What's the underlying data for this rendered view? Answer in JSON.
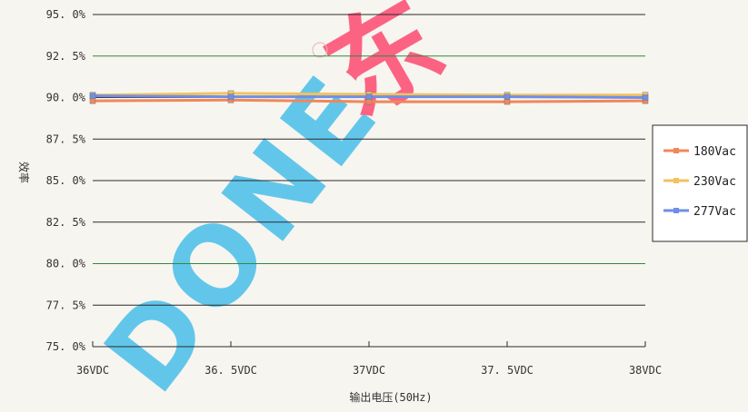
{
  "chart_data": {
    "type": "line",
    "xlabel": "输出电压(50Hz)",
    "ylabel": "效率",
    "categories": [
      "36VDC",
      "36.5VDC",
      "37VDC",
      "37.5VDC",
      "38VDC"
    ],
    "x_tick_labels": [
      "36VDC",
      "36. 5VDC",
      "37VDC",
      "37. 5VDC",
      "38VDC"
    ],
    "y_ticks": [
      "95. 0%",
      "92. 5%",
      "90. 0%",
      "87. 5%",
      "85. 0%",
      "82. 5%",
      "80. 0%",
      "77. 5%",
      "75. 0%"
    ],
    "ylim": [
      75.0,
      95.0
    ],
    "y_unit": "%",
    "grid": "horizontal",
    "legend_position": "right",
    "series": [
      {
        "name": "180Vac",
        "color": "#f0875a",
        "values": [
          89.8,
          89.85,
          89.75,
          89.75,
          89.8
        ]
      },
      {
        "name": "230Vac",
        "color": "#f2c25c",
        "values": [
          90.15,
          90.25,
          90.2,
          90.15,
          90.15
        ]
      },
      {
        "name": "277Vac",
        "color": "#6f8ee6",
        "values": [
          90.1,
          90.05,
          90.05,
          90.05,
          90.0
        ]
      }
    ]
  },
  "watermark": {
    "text": "DONE",
    "brand_char": "东",
    "color": "#2ab5ea",
    "accent_color": "#ff2b5a"
  }
}
